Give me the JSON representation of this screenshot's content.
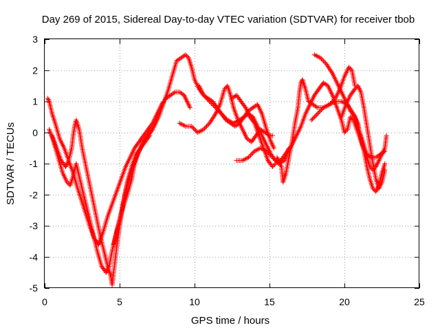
{
  "chart_data": {
    "type": "scatter",
    "title": "Day 269 of 2015, Sidereal Day-to-day VTEC variation (SDTVAR) for receiver tbob",
    "xlabel": "GPS time / hours",
    "ylabel": "SDTVAR / TECUs",
    "xlim": [
      0,
      25
    ],
    "ylim": [
      -5,
      3
    ],
    "xticks": [
      0,
      5,
      10,
      15,
      20,
      25
    ],
    "yticks": [
      -5,
      -4,
      -3,
      -2,
      -1,
      0,
      1,
      2,
      3
    ],
    "grid": true,
    "legend": "none",
    "marker": "plus",
    "color": "#ff0000",
    "series": [
      {
        "values": [
          [
            0.2,
            1.1
          ],
          [
            0.3,
            1.0
          ],
          [
            0.5,
            0.6
          ],
          [
            0.7,
            0.3
          ],
          [
            1.0,
            -0.2
          ],
          [
            1.3,
            -0.5
          ],
          [
            1.6,
            -0.9
          ],
          [
            1.9,
            -1.3
          ],
          [
            2.2,
            -1.8
          ],
          [
            2.6,
            -2.4
          ],
          [
            3.0,
            -3.0
          ],
          [
            3.3,
            -3.4
          ],
          [
            3.6,
            -3.6
          ],
          [
            3.9,
            -3.2
          ],
          [
            4.2,
            -2.7
          ],
          [
            4.5,
            -2.3
          ],
          [
            4.8,
            -1.9
          ],
          [
            5.1,
            -1.5
          ],
          [
            5.4,
            -1.1
          ],
          [
            5.7,
            -0.8
          ],
          [
            6.0,
            -0.5
          ],
          [
            6.3,
            -0.3
          ],
          [
            6.6,
            -0.1
          ],
          [
            6.9,
            0.1
          ],
          [
            7.2,
            0.3
          ],
          [
            7.5,
            0.6
          ],
          [
            7.8,
            0.9
          ],
          [
            8.1,
            1.1
          ],
          [
            8.4,
            1.2
          ],
          [
            8.7,
            1.3
          ],
          [
            9.0,
            1.3
          ],
          [
            9.3,
            1.2
          ],
          [
            9.5,
            1.0
          ],
          [
            9.7,
            0.8
          ]
        ]
      },
      {
        "values": [
          [
            0.3,
            0.1
          ],
          [
            0.6,
            -0.3
          ],
          [
            0.9,
            -0.8
          ],
          [
            1.2,
            -1.3
          ],
          [
            1.5,
            -1.6
          ],
          [
            1.7,
            -1.7
          ],
          [
            1.9,
            -1.4
          ],
          [
            2.1,
            -1.0
          ],
          [
            2.3,
            -1.4
          ],
          [
            2.6,
            -2.0
          ],
          [
            2.9,
            -2.6
          ],
          [
            3.2,
            -3.2
          ],
          [
            3.5,
            -3.8
          ],
          [
            3.8,
            -4.3
          ],
          [
            4.1,
            -4.5
          ],
          [
            4.3,
            -4.3
          ],
          [
            4.5,
            -3.8
          ],
          [
            4.7,
            -3.4
          ],
          [
            4.9,
            -3.0
          ],
          [
            5.1,
            -2.6
          ],
          [
            5.3,
            -2.1
          ],
          [
            5.5,
            -1.6
          ],
          [
            5.8,
            -1.1
          ],
          [
            6.1,
            -0.7
          ],
          [
            6.4,
            -0.5
          ],
          [
            6.7,
            -0.2
          ],
          [
            7.0,
            0.0
          ],
          [
            7.3,
            0.2
          ],
          [
            7.6,
            0.5
          ],
          [
            7.9,
            0.9
          ],
          [
            8.2,
            1.3
          ],
          [
            8.5,
            1.8
          ],
          [
            8.8,
            2.3
          ],
          [
            9.1,
            2.4
          ],
          [
            9.4,
            2.5
          ],
          [
            9.6,
            2.4
          ],
          [
            9.8,
            2.1
          ],
          [
            10.0,
            1.7
          ],
          [
            10.3,
            1.4
          ],
          [
            10.6,
            1.2
          ],
          [
            10.9,
            1.1
          ],
          [
            11.2,
            1.0
          ],
          [
            11.5,
            0.8
          ],
          [
            11.8,
            0.6
          ],
          [
            12.1,
            0.4
          ],
          [
            12.4,
            0.3
          ],
          [
            12.7,
            0.2
          ],
          [
            13.0,
            0.3
          ],
          [
            13.3,
            0.5
          ],
          [
            13.6,
            0.6
          ],
          [
            13.9,
            0.5
          ],
          [
            14.2,
            0.2
          ],
          [
            14.5,
            -0.1
          ],
          [
            14.8,
            -0.4
          ],
          [
            15.1,
            -0.7
          ],
          [
            15.4,
            -0.9
          ],
          [
            15.7,
            -1.0
          ]
        ]
      },
      {
        "values": [
          [
            0.5,
            -0.1
          ],
          [
            0.8,
            -0.5
          ],
          [
            1.1,
            -0.9
          ],
          [
            1.4,
            -1.1
          ],
          [
            1.6,
            -0.9
          ],
          [
            1.8,
            -0.5
          ],
          [
            1.9,
            -0.1
          ],
          [
            2.0,
            0.2
          ],
          [
            2.1,
            0.4
          ],
          [
            2.3,
            0.1
          ],
          [
            2.5,
            -0.5
          ],
          [
            2.8,
            -1.2
          ],
          [
            3.1,
            -1.9
          ],
          [
            3.4,
            -2.6
          ],
          [
            3.7,
            -3.3
          ],
          [
            4.0,
            -3.9
          ],
          [
            4.2,
            -4.3
          ],
          [
            4.4,
            -4.6
          ],
          [
            4.5,
            -4.9
          ],
          [
            4.6,
            -4.5
          ],
          [
            4.8,
            -3.7
          ],
          [
            5.0,
            -3.0
          ],
          [
            5.2,
            -2.4
          ],
          [
            5.5,
            -1.7
          ],
          [
            5.8,
            -1.2
          ],
          [
            6.1,
            -0.8
          ],
          [
            6.4,
            -0.5
          ],
          [
            6.7,
            -0.3
          ],
          [
            7.0,
            -0.1
          ]
        ]
      },
      {
        "values": [
          [
            4.6,
            -3.6
          ],
          [
            4.8,
            -3.2
          ],
          [
            5.1,
            -2.6
          ],
          [
            5.3,
            -2.3
          ],
          [
            5.5,
            -2.0
          ],
          [
            5.8,
            -1.5
          ],
          [
            6.0,
            -1.0
          ],
          [
            6.3,
            -0.6
          ],
          [
            6.6,
            -0.3
          ],
          [
            6.9,
            -0.1
          ],
          [
            7.2,
            0.1
          ]
        ]
      },
      {
        "values": [
          [
            9.0,
            0.3
          ],
          [
            9.4,
            0.2
          ],
          [
            9.8,
            0.2
          ],
          [
            10.2,
            0.0
          ],
          [
            10.6,
            0.1
          ],
          [
            11.0,
            0.3
          ],
          [
            11.4,
            0.6
          ],
          [
            11.7,
            0.9
          ],
          [
            12.0,
            1.4
          ],
          [
            12.2,
            1.5
          ],
          [
            12.4,
            1.2
          ],
          [
            12.6,
            0.8
          ],
          [
            12.9,
            0.4
          ],
          [
            13.2,
            0.1
          ],
          [
            13.5,
            -0.2
          ],
          [
            13.8,
            -0.3
          ],
          [
            14.1,
            -0.1
          ],
          [
            14.4,
            0.1
          ],
          [
            14.7,
            0.0
          ],
          [
            15.0,
            -0.1
          ],
          [
            15.2,
            -0.1
          ]
        ]
      },
      {
        "values": [
          [
            10.3,
            1.5
          ],
          [
            10.6,
            1.2
          ],
          [
            11.0,
            1.0
          ],
          [
            11.4,
            0.8
          ],
          [
            11.8,
            0.6
          ],
          [
            12.2,
            0.4
          ],
          [
            12.6,
            0.3
          ],
          [
            13.0,
            0.4
          ],
          [
            13.3,
            0.5
          ],
          [
            13.6,
            0.7
          ],
          [
            13.9,
            0.8
          ],
          [
            14.2,
            0.9
          ],
          [
            14.5,
            0.6
          ],
          [
            14.8,
            0.1
          ],
          [
            15.1,
            -0.3
          ],
          [
            15.3,
            -0.5
          ]
        ]
      },
      {
        "values": [
          [
            12.5,
            1.1
          ],
          [
            12.8,
            1.2
          ],
          [
            13.1,
            1.0
          ],
          [
            13.4,
            0.8
          ],
          [
            13.7,
            0.5
          ],
          [
            14.0,
            0.3
          ],
          [
            14.3,
            -0.1
          ],
          [
            14.6,
            -0.5
          ],
          [
            14.9,
            -0.9
          ],
          [
            15.2,
            -1.1
          ],
          [
            15.4,
            -1.0
          ]
        ]
      },
      {
        "values": [
          [
            12.8,
            -0.9
          ],
          [
            13.2,
            -0.9
          ],
          [
            13.6,
            -0.8
          ],
          [
            14.0,
            -0.6
          ],
          [
            14.4,
            -0.5
          ],
          [
            14.8,
            -0.6
          ],
          [
            15.2,
            -0.8
          ],
          [
            15.6,
            -1.0
          ],
          [
            16.0,
            -0.9
          ],
          [
            16.3,
            -0.5
          ]
        ]
      },
      {
        "values": [
          [
            15.5,
            -0.8
          ],
          [
            15.8,
            -1.1
          ],
          [
            15.9,
            -1.6
          ],
          [
            16.1,
            -1.3
          ],
          [
            16.3,
            -0.8
          ],
          [
            16.5,
            -0.3
          ],
          [
            16.7,
            0.3
          ],
          [
            16.9,
            0.8
          ],
          [
            17.0,
            1.3
          ],
          [
            17.1,
            1.6
          ],
          [
            17.2,
            1.7
          ],
          [
            17.4,
            1.4
          ],
          [
            17.6,
            1.0
          ],
          [
            17.9,
            0.9
          ],
          [
            18.2,
            0.8
          ],
          [
            18.6,
            0.8
          ],
          [
            19.0,
            0.9
          ],
          [
            19.4,
            1.0
          ],
          [
            19.8,
            1.0
          ],
          [
            20.2,
            0.9
          ],
          [
            20.6,
            0.6
          ],
          [
            20.9,
            0.3
          ],
          [
            21.1,
            -0.2
          ],
          [
            21.3,
            -0.6
          ],
          [
            21.5,
            -1.1
          ],
          [
            21.7,
            -1.5
          ],
          [
            21.9,
            -1.8
          ],
          [
            22.1,
            -1.9
          ],
          [
            22.3,
            -1.7
          ],
          [
            22.5,
            -1.3
          ],
          [
            22.7,
            -1.0
          ]
        ]
      },
      {
        "values": [
          [
            15.6,
            -1.0
          ],
          [
            15.9,
            -0.8
          ],
          [
            16.2,
            -0.6
          ],
          [
            16.5,
            -0.4
          ],
          [
            16.8,
            -0.1
          ],
          [
            17.1,
            0.2
          ],
          [
            17.4,
            0.6
          ],
          [
            17.7,
            0.9
          ],
          [
            18.0,
            1.2
          ],
          [
            18.3,
            1.4
          ],
          [
            18.6,
            1.6
          ],
          [
            18.9,
            1.5
          ],
          [
            19.2,
            1.2
          ],
          [
            19.5,
            0.8
          ],
          [
            19.8,
            0.4
          ],
          [
            20.0,
            0.0
          ],
          [
            20.2,
            0.1
          ],
          [
            20.4,
            0.5
          ],
          [
            20.6,
            0.4
          ],
          [
            20.9,
            0.0
          ],
          [
            21.2,
            -0.4
          ],
          [
            21.5,
            -0.7
          ],
          [
            21.8,
            -0.8
          ],
          [
            22.1,
            -0.8
          ],
          [
            22.4,
            -0.7
          ],
          [
            22.7,
            -0.6
          ]
        ]
      },
      {
        "values": [
          [
            17.8,
            0.4
          ],
          [
            18.2,
            0.6
          ],
          [
            18.6,
            0.8
          ],
          [
            19.0,
            0.9
          ],
          [
            19.4,
            1.1
          ],
          [
            19.7,
            1.4
          ],
          [
            20.0,
            1.8
          ],
          [
            20.3,
            2.1
          ],
          [
            20.5,
            2.0
          ],
          [
            20.7,
            1.5
          ]
        ]
      },
      {
        "values": [
          [
            18.0,
            2.5
          ],
          [
            18.4,
            2.4
          ],
          [
            18.8,
            2.2
          ],
          [
            19.2,
            1.9
          ],
          [
            19.5,
            1.6
          ],
          [
            19.8,
            1.3
          ],
          [
            20.1,
            1.0
          ],
          [
            20.4,
            0.7
          ],
          [
            20.7,
            0.5
          ],
          [
            20.9,
            0.2
          ],
          [
            21.1,
            -0.1
          ],
          [
            21.3,
            -0.4
          ],
          [
            21.5,
            -0.8
          ],
          [
            21.7,
            -1.1
          ],
          [
            21.9,
            -1.2
          ],
          [
            22.1,
            -1.1
          ],
          [
            22.3,
            -0.9
          ],
          [
            22.5,
            -0.7
          ],
          [
            22.7,
            -0.5
          ],
          [
            22.8,
            -0.1
          ]
        ]
      },
      {
        "values": [
          [
            19.8,
            0.5
          ],
          [
            20.1,
            0.9
          ],
          [
            20.4,
            1.2
          ],
          [
            20.7,
            1.4
          ],
          [
            20.9,
            1.5
          ],
          [
            21.1,
            1.3
          ],
          [
            21.3,
            0.8
          ],
          [
            21.5,
            0.2
          ],
          [
            21.7,
            -0.4
          ],
          [
            21.9,
            -1.0
          ],
          [
            22.1,
            -1.5
          ],
          [
            22.3,
            -1.8
          ],
          [
            22.5,
            -1.6
          ],
          [
            22.7,
            -1.2
          ]
        ]
      }
    ]
  }
}
